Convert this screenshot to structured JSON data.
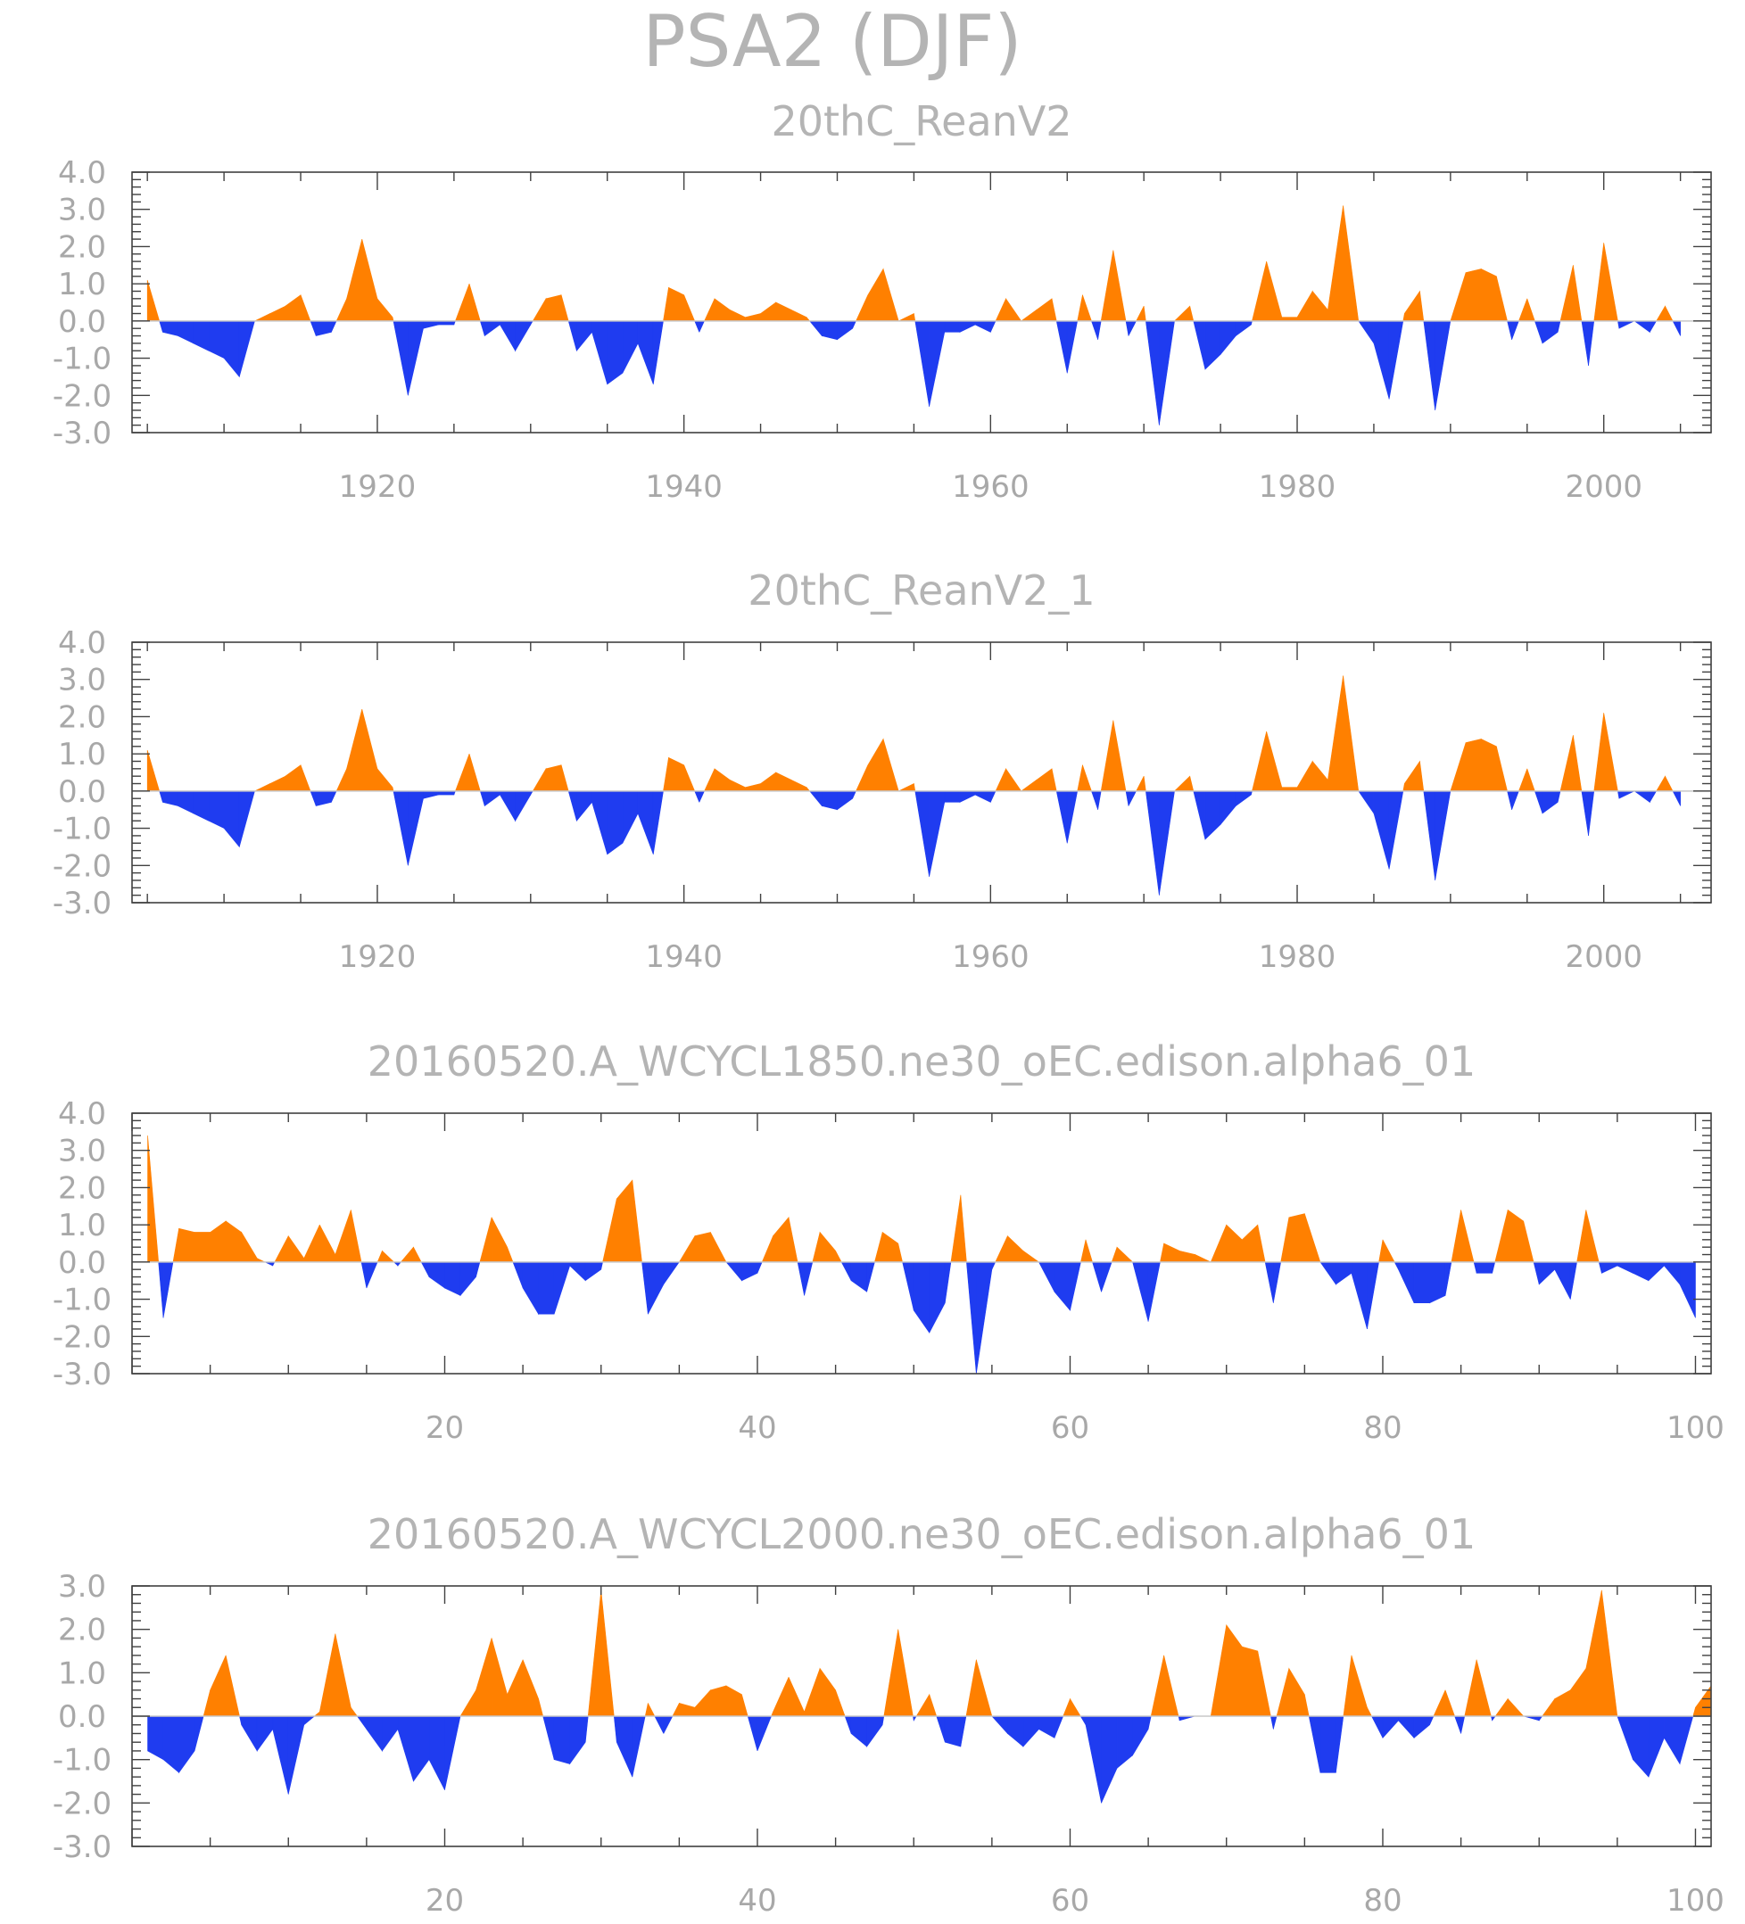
{
  "title": "PSA2 (DJF)",
  "colors": {
    "positive": "#ff8000",
    "negative": "#1f3cf0",
    "text": "#b4b4b4",
    "frame": "#404040"
  },
  "chart_data": [
    {
      "type": "area",
      "title": "20thC_ReanV2",
      "xlim": [
        1904,
        2007
      ],
      "ylim": [
        -3.0,
        4.0
      ],
      "xticks": [
        1920,
        1940,
        1960,
        1980,
        2000
      ],
      "xtick_labels": [
        "1920",
        "1940",
        "1960",
        "1980",
        "2000"
      ],
      "yticks": [
        -3.0,
        -2.0,
        -1.0,
        0.0,
        1.0,
        2.0,
        3.0,
        4.0
      ],
      "ytick_labels": [
        "-3.0",
        "-2.0",
        "-1.0",
        "0.0",
        "1.0",
        "2.0",
        "3.0",
        "4.0"
      ],
      "x_start": 1905,
      "values": [
        1.1,
        -0.3,
        -0.4,
        -0.6,
        -0.8,
        -1.0,
        -1.5,
        0.0,
        0.2,
        0.4,
        0.7,
        -0.4,
        -0.3,
        0.6,
        2.2,
        0.6,
        0.1,
        -2.0,
        -0.2,
        -0.1,
        -0.1,
        1.0,
        -0.4,
        -0.1,
        -0.8,
        -0.1,
        0.6,
        0.7,
        -0.8,
        -0.3,
        -1.7,
        -1.4,
        -0.6,
        -1.7,
        0.9,
        0.7,
        -0.3,
        0.6,
        0.3,
        0.1,
        0.2,
        0.5,
        0.3,
        0.1,
        -0.4,
        -0.5,
        -0.2,
        0.7,
        1.4,
        0.0,
        0.2,
        -2.3,
        -0.3,
        -0.3,
        -0.1,
        -0.3,
        0.6,
        0.0,
        0.3,
        0.6,
        -1.4,
        0.7,
        -0.5,
        1.9,
        -0.4,
        0.4,
        -2.8,
        0.0,
        0.4,
        -1.3,
        -0.9,
        -0.4,
        -0.1,
        1.6,
        0.1,
        0.1,
        0.8,
        0.3,
        3.1,
        0.0,
        -0.6,
        -2.1,
        0.2,
        0.8,
        -2.4,
        0.0,
        1.3,
        1.4,
        1.2,
        -0.5,
        0.6,
        -0.6,
        -0.3,
        1.5,
        -1.2,
        2.1,
        -0.2,
        0.0,
        -0.3,
        0.4,
        -0.4
      ]
    },
    {
      "type": "area",
      "title": "20thC_ReanV2_1",
      "xlim": [
        1904,
        2007
      ],
      "ylim": [
        -3.0,
        4.0
      ],
      "xticks": [
        1920,
        1940,
        1960,
        1980,
        2000
      ],
      "xtick_labels": [
        "1920",
        "1940",
        "1960",
        "1980",
        "2000"
      ],
      "yticks": [
        -3.0,
        -2.0,
        -1.0,
        0.0,
        1.0,
        2.0,
        3.0,
        4.0
      ],
      "ytick_labels": [
        "-3.0",
        "-2.0",
        "-1.0",
        "0.0",
        "1.0",
        "2.0",
        "3.0",
        "4.0"
      ],
      "x_start": 1905,
      "values": [
        1.1,
        -0.3,
        -0.4,
        -0.6,
        -0.8,
        -1.0,
        -1.5,
        0.0,
        0.2,
        0.4,
        0.7,
        -0.4,
        -0.3,
        0.6,
        2.2,
        0.6,
        0.1,
        -2.0,
        -0.2,
        -0.1,
        -0.1,
        1.0,
        -0.4,
        -0.1,
        -0.8,
        -0.1,
        0.6,
        0.7,
        -0.8,
        -0.3,
        -1.7,
        -1.4,
        -0.6,
        -1.7,
        0.9,
        0.7,
        -0.3,
        0.6,
        0.3,
        0.1,
        0.2,
        0.5,
        0.3,
        0.1,
        -0.4,
        -0.5,
        -0.2,
        0.7,
        1.4,
        0.0,
        0.2,
        -2.3,
        -0.3,
        -0.3,
        -0.1,
        -0.3,
        0.6,
        0.0,
        0.3,
        0.6,
        -1.4,
        0.7,
        -0.5,
        1.9,
        -0.4,
        0.4,
        -2.8,
        0.0,
        0.4,
        -1.3,
        -0.9,
        -0.4,
        -0.1,
        1.6,
        0.1,
        0.1,
        0.8,
        0.3,
        3.1,
        0.0,
        -0.6,
        -2.1,
        0.2,
        0.8,
        -2.4,
        0.0,
        1.3,
        1.4,
        1.2,
        -0.5,
        0.6,
        -0.6,
        -0.3,
        1.5,
        -1.2,
        2.1,
        -0.2,
        0.0,
        -0.3,
        0.4,
        -0.4
      ]
    },
    {
      "type": "area",
      "title": "20160520.A_WCYCL1850.ne30_oEC.edison.alpha6_01",
      "xlim": [
        0,
        101
      ],
      "ylim": [
        -3.0,
        4.0
      ],
      "xticks": [
        20,
        40,
        60,
        80,
        100
      ],
      "xtick_labels": [
        "20",
        "40",
        "60",
        "80",
        "100"
      ],
      "yticks": [
        -3.0,
        -2.0,
        -1.0,
        0.0,
        1.0,
        2.0,
        3.0,
        4.0
      ],
      "ytick_labels": [
        "-3.0",
        "-2.0",
        "-1.0",
        "0.0",
        "1.0",
        "2.0",
        "3.0",
        "4.0"
      ],
      "x_start": 1,
      "values": [
        3.4,
        -1.5,
        0.9,
        0.8,
        0.8,
        1.1,
        0.8,
        0.1,
        -0.1,
        0.7,
        0.1,
        1.0,
        0.2,
        1.4,
        -0.7,
        0.3,
        -0.1,
        0.4,
        -0.4,
        -0.7,
        -0.9,
        -0.4,
        1.2,
        0.4,
        -0.7,
        -1.4,
        -1.4,
        -0.1,
        -0.5,
        -0.2,
        1.7,
        2.2,
        -1.4,
        -0.6,
        0.0,
        0.7,
        0.8,
        0.0,
        -0.5,
        -0.3,
        0.7,
        1.2,
        -0.9,
        0.8,
        0.3,
        -0.5,
        -0.8,
        0.8,
        0.5,
        -1.3,
        -1.9,
        -1.1,
        1.8,
        -3.0,
        -0.2,
        0.7,
        0.3,
        0.0,
        -0.8,
        -1.3,
        0.6,
        -0.8,
        0.4,
        0.0,
        -1.6,
        0.5,
        0.3,
        0.2,
        0.0,
        1.0,
        0.6,
        1.0,
        -1.1,
        1.2,
        1.3,
        0.0,
        -0.6,
        -0.3,
        -1.8,
        0.6,
        -0.2,
        -1.1,
        -1.1,
        -0.9,
        1.4,
        -0.3,
        -0.3,
        1.4,
        1.1,
        -0.6,
        -0.2,
        -1.0,
        1.4,
        -0.3,
        -0.1,
        -0.3,
        -0.5,
        -0.1,
        -0.6,
        -1.5
      ]
    },
    {
      "type": "area",
      "title": "20160520.A_WCYCL2000.ne30_oEC.edison.alpha6_01",
      "xlim": [
        0,
        101
      ],
      "ylim": [
        -3.0,
        3.0
      ],
      "xticks": [
        20,
        40,
        60,
        80,
        100
      ],
      "xtick_labels": [
        "20",
        "40",
        "60",
        "80",
        "100"
      ],
      "yticks": [
        -3.0,
        -2.0,
        -1.0,
        0.0,
        1.0,
        2.0,
        3.0
      ],
      "ytick_labels": [
        "-3.0",
        "-2.0",
        "-1.0",
        "0.0",
        "1.0",
        "2.0",
        "3.0"
      ],
      "x_start": 1,
      "values": [
        -0.8,
        -1.0,
        -1.3,
        -0.8,
        0.6,
        1.4,
        -0.2,
        -0.8,
        -0.3,
        -1.8,
        -0.2,
        0.1,
        1.9,
        0.2,
        -0.3,
        -0.8,
        -0.3,
        -1.5,
        -1.0,
        -1.7,
        0.0,
        0.6,
        1.8,
        0.5,
        1.3,
        0.4,
        -1.0,
        -1.1,
        -0.6,
        2.9,
        -0.6,
        -1.4,
        0.3,
        -0.4,
        0.3,
        0.2,
        0.6,
        0.7,
        0.5,
        -0.8,
        0.1,
        0.9,
        0.1,
        1.1,
        0.6,
        -0.4,
        -0.7,
        -0.2,
        2.0,
        -0.1,
        0.5,
        -0.6,
        -0.7,
        1.3,
        0.0,
        -0.4,
        -0.7,
        -0.3,
        -0.5,
        0.4,
        -0.2,
        -2.0,
        -1.2,
        -0.9,
        -0.3,
        1.4,
        -0.1,
        0.0,
        0.0,
        2.1,
        1.6,
        1.5,
        -0.3,
        1.1,
        0.5,
        -1.3,
        -1.3,
        1.4,
        0.2,
        -0.5,
        -0.1,
        -0.5,
        -0.2,
        0.6,
        -0.4,
        1.3,
        -0.1,
        0.4,
        0.0,
        -0.1,
        0.4,
        0.6,
        1.1,
        2.9,
        0.0,
        -1.0,
        -1.4,
        -0.5,
        -1.1,
        0.2,
        0.7
      ]
    }
  ]
}
